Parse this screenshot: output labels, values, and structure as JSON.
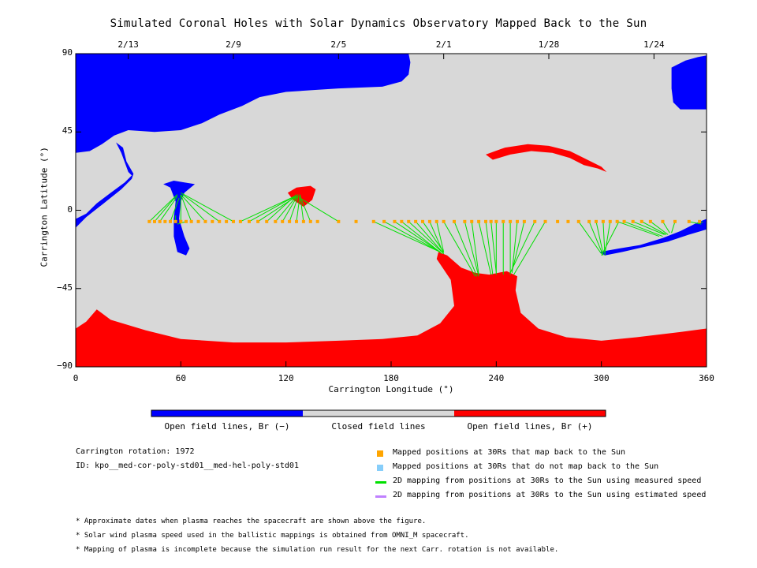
{
  "chart_data": {
    "type": "map",
    "title": "Simulated Coronal Holes with Solar Dynamics Observatory Mapped Back to the Sun",
    "xlabel": "Carrington Longitude (°)",
    "ylabel": "Carrington Latitude (°)",
    "xlim": [
      0,
      360
    ],
    "ylim": [
      -90,
      90
    ],
    "x_ticks": [
      0,
      60,
      120,
      180,
      240,
      300,
      360
    ],
    "y_ticks": [
      90,
      45,
      0,
      -45,
      -90
    ],
    "y_tick_labels": [
      "90",
      "45",
      "0",
      "−45",
      "−90"
    ],
    "top_ticks": [
      {
        "label": "2/13",
        "lon": 30
      },
      {
        "label": "2/9",
        "lon": 90
      },
      {
        "label": "2/5",
        "lon": 150
      },
      {
        "label": "2/1",
        "lon": 210
      },
      {
        "label": "1/28",
        "lon": 270
      },
      {
        "label": "1/24",
        "lon": 330
      }
    ],
    "colors": {
      "open_negative": "#0000ff",
      "closed": "#d8d8d8",
      "open_positive": "#ff0000",
      "mapped_point": "#ffa500",
      "unmapped_point": "#87cefa",
      "measured_line": "#00e000",
      "estimated_line": "#c080ff"
    },
    "regions": [
      {
        "polarity": "negative",
        "polygon": [
          [
            0,
            90
          ],
          [
            190,
            90
          ],
          [
            191,
            85
          ],
          [
            190,
            78
          ],
          [
            186,
            74
          ],
          [
            175,
            71
          ],
          [
            150,
            70
          ],
          [
            135,
            69
          ],
          [
            120,
            68
          ],
          [
            105,
            65
          ],
          [
            95,
            60
          ],
          [
            82,
            55
          ],
          [
            72,
            50
          ],
          [
            60,
            46
          ],
          [
            45,
            45
          ],
          [
            30,
            46
          ],
          [
            22,
            43
          ],
          [
            15,
            38
          ],
          [
            8,
            34
          ],
          [
            0,
            33
          ]
        ]
      },
      {
        "polarity": "negative",
        "polygon": [
          [
            340,
            82
          ],
          [
            348,
            86
          ],
          [
            355,
            88
          ],
          [
            360,
            89
          ],
          [
            360,
            58
          ],
          [
            345,
            58
          ],
          [
            341,
            62
          ],
          [
            340,
            70
          ]
        ]
      },
      {
        "polarity": "negative",
        "polygon": [
          [
            23,
            39
          ],
          [
            26,
            33
          ],
          [
            30,
            22
          ],
          [
            32,
            20
          ],
          [
            28,
            16
          ],
          [
            20,
            10
          ],
          [
            12,
            4
          ],
          [
            6,
            -2
          ],
          [
            0,
            -5
          ],
          [
            0,
            -10
          ],
          [
            6,
            -4
          ],
          [
            16,
            4
          ],
          [
            26,
            12
          ],
          [
            32,
            18
          ],
          [
            33,
            21
          ],
          [
            29,
            28
          ],
          [
            27,
            36
          ]
        ]
      },
      {
        "polarity": "negative",
        "polygon": [
          [
            50,
            15
          ],
          [
            56,
            17
          ],
          [
            62,
            16
          ],
          [
            68,
            15
          ],
          [
            62,
            10
          ],
          [
            60,
            5
          ],
          [
            59,
            -5
          ],
          [
            62,
            -15
          ],
          [
            65,
            -22
          ],
          [
            63,
            -26
          ],
          [
            58,
            -24
          ],
          [
            56,
            -15
          ],
          [
            56,
            -5
          ],
          [
            57,
            5
          ],
          [
            54,
            13
          ]
        ]
      },
      {
        "polarity": "negative",
        "polygon": [
          [
            299,
            -24
          ],
          [
            310,
            -22
          ],
          [
            322,
            -20
          ],
          [
            335,
            -16
          ],
          [
            345,
            -12
          ],
          [
            355,
            -7
          ],
          [
            360,
            -5
          ],
          [
            360,
            -11
          ],
          [
            350,
            -14
          ],
          [
            338,
            -18
          ],
          [
            325,
            -21
          ],
          [
            312,
            -24
          ],
          [
            302,
            -26
          ]
        ]
      },
      {
        "polarity": "positive",
        "polygon": [
          [
            121,
            10
          ],
          [
            126,
            13
          ],
          [
            134,
            14
          ],
          [
            137,
            12
          ],
          [
            135,
            6
          ],
          [
            130,
            2
          ],
          [
            124,
            6
          ]
        ]
      },
      {
        "polarity": "positive",
        "polygon": [
          [
            234,
            32
          ],
          [
            245,
            36
          ],
          [
            258,
            38
          ],
          [
            270,
            37
          ],
          [
            282,
            34
          ],
          [
            292,
            29
          ],
          [
            300,
            25
          ],
          [
            303,
            22
          ],
          [
            298,
            24
          ],
          [
            290,
            26
          ],
          [
            282,
            30
          ],
          [
            272,
            33
          ],
          [
            260,
            34
          ],
          [
            248,
            32
          ],
          [
            238,
            29
          ]
        ]
      },
      {
        "polarity": "positive",
        "polygon": [
          [
            0,
            -90
          ],
          [
            360,
            -90
          ],
          [
            360,
            -68
          ],
          [
            345,
            -70
          ],
          [
            320,
            -73
          ],
          [
            300,
            -75
          ],
          [
            280,
            -73
          ],
          [
            264,
            -68
          ],
          [
            254,
            -59
          ],
          [
            251,
            -46
          ],
          [
            252,
            -38
          ],
          [
            246,
            -35
          ],
          [
            236,
            -37
          ],
          [
            228,
            -36
          ],
          [
            220,
            -33
          ],
          [
            212,
            -26
          ],
          [
            207,
            -24
          ],
          [
            206,
            -28
          ],
          [
            214,
            -40
          ],
          [
            216,
            -55
          ],
          [
            208,
            -65
          ],
          [
            195,
            -72
          ],
          [
            175,
            -74
          ],
          [
            150,
            -75
          ],
          [
            120,
            -76
          ],
          [
            90,
            -76
          ],
          [
            60,
            -74
          ],
          [
            40,
            -69
          ],
          [
            20,
            -63
          ],
          [
            12,
            -57
          ],
          [
            6,
            -64
          ],
          [
            0,
            -68
          ]
        ]
      }
    ],
    "mapped_points": {
      "lat": -6.5,
      "lon": [
        42,
        45,
        48,
        51,
        54,
        57,
        60,
        63,
        66,
        70,
        74,
        78,
        82,
        86,
        90,
        94,
        99,
        104,
        109,
        114,
        118,
        122,
        126,
        130,
        134,
        138,
        150,
        160,
        170,
        176,
        182,
        186,
        190,
        194,
        198,
        202,
        206,
        210,
        216,
        222,
        226,
        230,
        234,
        237,
        240,
        244,
        248,
        252,
        256,
        262,
        268,
        275,
        281,
        287,
        293,
        297,
        301,
        305,
        309,
        313,
        318,
        323,
        328,
        335,
        342,
        350,
        356
      ]
    },
    "field_line_mappings": [
      {
        "from": [
          42,
          -6.5
        ],
        "to": [
          58,
          9
        ]
      },
      {
        "from": [
          45,
          -6.5
        ],
        "to": [
          58,
          9
        ]
      },
      {
        "from": [
          48,
          -6.5
        ],
        "to": [
          58,
          8
        ]
      },
      {
        "from": [
          54,
          -6.5
        ],
        "to": [
          59,
          7
        ]
      },
      {
        "from": [
          60,
          -6.5
        ],
        "to": [
          60,
          9
        ]
      },
      {
        "from": [
          66,
          -6.5
        ],
        "to": [
          60,
          9
        ]
      },
      {
        "from": [
          74,
          -6.5
        ],
        "to": [
          60,
          9
        ]
      },
      {
        "from": [
          82,
          -6.5
        ],
        "to": [
          61,
          9
        ]
      },
      {
        "from": [
          90,
          -6.5
        ],
        "to": [
          60,
          10
        ]
      },
      {
        "from": [
          57,
          -6.5
        ],
        "to": [
          57,
          -3
        ]
      },
      {
        "from": [
          63,
          -6.5
        ],
        "to": [
          58,
          -8
        ]
      },
      {
        "from": [
          94,
          -6.5
        ],
        "to": [
          125,
          8
        ]
      },
      {
        "from": [
          99,
          -6.5
        ],
        "to": [
          125,
          8
        ]
      },
      {
        "from": [
          104,
          -6.5
        ],
        "to": [
          126,
          8
        ]
      },
      {
        "from": [
          109,
          -6.5
        ],
        "to": [
          126,
          9
        ]
      },
      {
        "from": [
          114,
          -6.5
        ],
        "to": [
          126,
          8
        ]
      },
      {
        "from": [
          118,
          -6.5
        ],
        "to": [
          127,
          9
        ]
      },
      {
        "from": [
          122,
          -6.5
        ],
        "to": [
          127,
          8
        ]
      },
      {
        "from": [
          126,
          -6.5
        ],
        "to": [
          128,
          9
        ]
      },
      {
        "from": [
          130,
          -6.5
        ],
        "to": [
          128,
          9
        ]
      },
      {
        "from": [
          134,
          -6.5
        ],
        "to": [
          128,
          8
        ]
      },
      {
        "from": [
          150,
          -6.5
        ],
        "to": [
          128,
          7
        ]
      },
      {
        "from": [
          170,
          -6.5
        ],
        "to": [
          208,
          -24
        ]
      },
      {
        "from": [
          176,
          -6.5
        ],
        "to": [
          208,
          -24
        ]
      },
      {
        "from": [
          182,
          -6.5
        ],
        "to": [
          208,
          -24
        ]
      },
      {
        "from": [
          186,
          -6.5
        ],
        "to": [
          209,
          -25
        ]
      },
      {
        "from": [
          190,
          -6.5
        ],
        "to": [
          209,
          -24
        ]
      },
      {
        "from": [
          194,
          -6.5
        ],
        "to": [
          210,
          -25
        ]
      },
      {
        "from": [
          198,
          -6.5
        ],
        "to": [
          210,
          -24
        ]
      },
      {
        "from": [
          202,
          -6.5
        ],
        "to": [
          210,
          -25
        ]
      },
      {
        "from": [
          206,
          -6.5
        ],
        "to": [
          210,
          -24
        ]
      },
      {
        "from": [
          210,
          -6.5
        ],
        "to": [
          228,
          -38
        ]
      },
      {
        "from": [
          216,
          -6.5
        ],
        "to": [
          229,
          -38
        ]
      },
      {
        "from": [
          222,
          -6.5
        ],
        "to": [
          230,
          -38
        ]
      },
      {
        "from": [
          226,
          -6.5
        ],
        "to": [
          230,
          -37
        ]
      },
      {
        "from": [
          230,
          -6.5
        ],
        "to": [
          237,
          -37
        ]
      },
      {
        "from": [
          234,
          -6.5
        ],
        "to": [
          238,
          -37
        ]
      },
      {
        "from": [
          237,
          -6.5
        ],
        "to": [
          240,
          -36
        ]
      },
      {
        "from": [
          240,
          -6.5
        ],
        "to": [
          240,
          -37
        ]
      },
      {
        "from": [
          244,
          -6.5
        ],
        "to": [
          244,
          -37
        ]
      },
      {
        "from": [
          248,
          -6.5
        ],
        "to": [
          248,
          -37
        ]
      },
      {
        "from": [
          252,
          -6.5
        ],
        "to": [
          249,
          -36
        ]
      },
      {
        "from": [
          256,
          -6.5
        ],
        "to": [
          249,
          -35
        ]
      },
      {
        "from": [
          262,
          -6.5
        ],
        "to": [
          248,
          -36
        ]
      },
      {
        "from": [
          268,
          -6.5
        ],
        "to": [
          250,
          -37
        ]
      },
      {
        "from": [
          287,
          -6.5
        ],
        "to": [
          300,
          -25
        ]
      },
      {
        "from": [
          293,
          -6.5
        ],
        "to": [
          301,
          -26
        ]
      },
      {
        "from": [
          297,
          -6.5
        ],
        "to": [
          301,
          -25
        ]
      },
      {
        "from": [
          301,
          -6.5
        ],
        "to": [
          302,
          -26
        ]
      },
      {
        "from": [
          305,
          -6.5
        ],
        "to": [
          302,
          -25
        ]
      },
      {
        "from": [
          309,
          -6.5
        ],
        "to": [
          333,
          -15
        ]
      },
      {
        "from": [
          313,
          -6.5
        ],
        "to": [
          335,
          -15
        ]
      },
      {
        "from": [
          318,
          -6.5
        ],
        "to": [
          336,
          -14
        ]
      },
      {
        "from": [
          323,
          -6.5
        ],
        "to": [
          337,
          -14
        ]
      },
      {
        "from": [
          328,
          -6.5
        ],
        "to": [
          338,
          -14
        ]
      },
      {
        "from": [
          335,
          -6.5
        ],
        "to": [
          339,
          -13
        ]
      },
      {
        "from": [
          342,
          -6.5
        ],
        "to": [
          340,
          -13
        ]
      },
      {
        "from": [
          350,
          -6.5
        ],
        "to": [
          357,
          -8
        ]
      },
      {
        "from": [
          356,
          -6.5
        ],
        "to": [
          358,
          -7
        ]
      },
      {
        "from": [
          310,
          -6.5
        ],
        "to": [
          300,
          -26
        ]
      }
    ]
  },
  "colorbar": {
    "labels": [
      "Open field lines, Br (−)",
      "Closed field lines",
      "Open field lines, Br (+)"
    ]
  },
  "info": {
    "rotation": "Carrington rotation: 1972",
    "id": "ID: kpo__med-cor-poly-std01__med-hel-poly-std01"
  },
  "legend": [
    {
      "kind": "square",
      "color": "#ffa500",
      "text": "Mapped positions at 30Rs that map back to the Sun"
    },
    {
      "kind": "square",
      "color": "#87cefa",
      "text": "Mapped positions at 30Rs that do not map back to the Sun"
    },
    {
      "kind": "line",
      "color": "#00e000",
      "text": "2D mapping from positions at 30Rs to the Sun using measured speed"
    },
    {
      "kind": "line",
      "color": "#c080ff",
      "text": "2D mapping from positions at 30Rs to the Sun using estimated speed"
    }
  ],
  "notes": [
    "* Approximate dates when plasma reaches the spacecraft are shown above the figure.",
    "* Solar wind plasma speed used in the ballistic mappings is obtained from OMNI_M spacecraft.",
    "* Mapping of plasma is incomplete because the simulation run result for the next Carr. rotation is not available."
  ]
}
